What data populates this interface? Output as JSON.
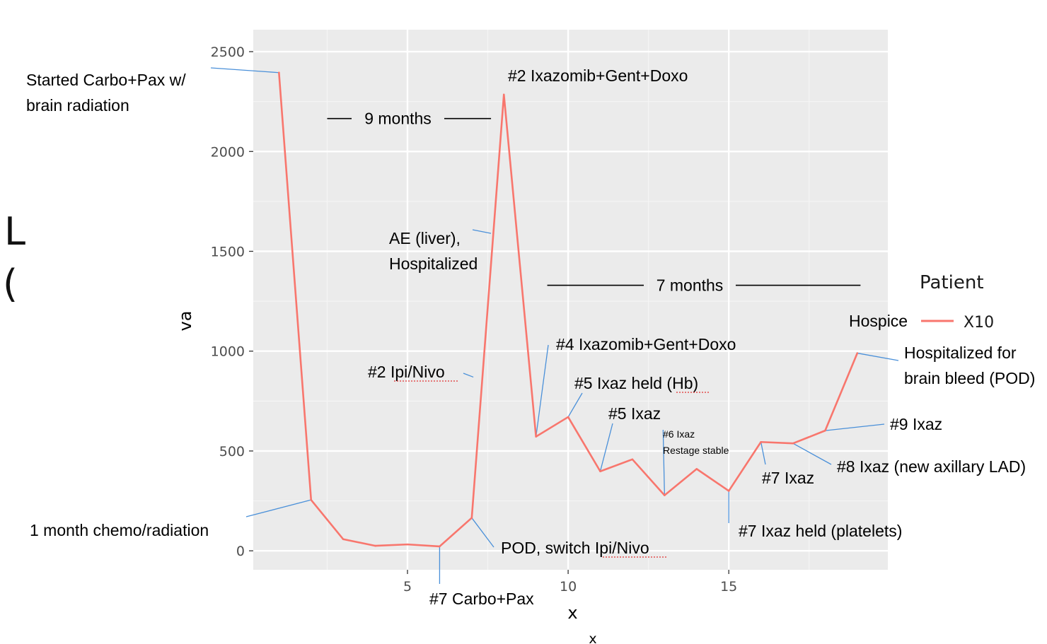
{
  "chart_data": {
    "type": "line",
    "xlabel": "x",
    "ylabel": "va",
    "xlim": [
      0.2,
      19.95
    ],
    "ylim": [
      -95,
      2610
    ],
    "x_ticks": [
      5,
      10,
      15
    ],
    "y_ticks": [
      0,
      500,
      1000,
      1500,
      2000,
      2500
    ],
    "grid": true,
    "panel_background": "#EBEBEB",
    "legend": {
      "title": "Patient",
      "position": "right",
      "entries": [
        "X10"
      ]
    },
    "series": [
      {
        "name": "X10",
        "color": "#F8766D",
        "x": [
          1,
          2,
          3,
          4,
          5,
          6,
          7,
          8,
          9,
          10,
          11,
          12,
          13,
          14,
          15,
          16,
          17,
          18,
          19
        ],
        "y": [
          2395,
          255,
          58,
          25,
          32,
          22,
          165,
          2285,
          572,
          670,
          398,
          458,
          278,
          410,
          300,
          545,
          538,
          602,
          990
        ]
      }
    ],
    "annotations": [
      {
        "id": "started",
        "lines": [
          "Started Carbo+Pax w/",
          "brain radiation"
        ],
        "x": 1,
        "y": 2395
      },
      {
        "id": "one-month",
        "lines": [
          "1 month chemo/radiation"
        ],
        "x": 2,
        "y": 255
      },
      {
        "id": "carbo-pax-7",
        "lines": [
          "#7 Carbo+Pax"
        ],
        "x": 6,
        "y": 22
      },
      {
        "id": "pod-switch",
        "lines": [
          "POD, switch Ipi/Nivo"
        ],
        "x": 7,
        "y": 165
      },
      {
        "id": "ipi-nivo-2",
        "lines": [
          "#2 Ipi/Nivo"
        ],
        "x": 7.05,
        "y": 870
      },
      {
        "id": "ae-liver",
        "lines": [
          "AE (liver),",
          "Hospitalized"
        ],
        "x": 7.6,
        "y": 1590
      },
      {
        "id": "ixazomib-2",
        "lines": [
          "#2 Ixazomib+Gent+Doxo"
        ],
        "x": 8,
        "y": 2285
      },
      {
        "id": "ixazomib-4",
        "lines": [
          "#4 Ixazomib+Gent+Doxo"
        ],
        "x": 9,
        "y": 572
      },
      {
        "id": "ixaz-held-5",
        "lines": [
          "#5 Ixaz held (Hb)"
        ],
        "x": 10,
        "y": 670
      },
      {
        "id": "ixaz-5",
        "lines": [
          "#5 Ixaz"
        ],
        "x": 11,
        "y": 398
      },
      {
        "id": "ixaz-6",
        "lines": [
          "#6 Ixaz",
          "Restage stable"
        ],
        "x": 13,
        "y": 278
      },
      {
        "id": "ixaz-held-7",
        "lines": [
          "#7 Ixaz held (platelets)"
        ],
        "x": 15,
        "y": 300
      },
      {
        "id": "ixaz-7",
        "lines": [
          "#7 Ixaz"
        ],
        "x": 16,
        "y": 545
      },
      {
        "id": "ixaz-8",
        "lines": [
          "#8 Ixaz (new axillary LAD)"
        ],
        "x": 17,
        "y": 538
      },
      {
        "id": "ixaz-9",
        "lines": [
          "#9 Ixaz"
        ],
        "x": 18,
        "y": 602
      },
      {
        "id": "hospice",
        "lines": [
          "Hospice"
        ],
        "x": 18.95,
        "y": 1125
      },
      {
        "id": "brain-bleed",
        "lines": [
          "Hospitalized for",
          "brain bleed (POD)"
        ],
        "x": 19,
        "y": 990
      }
    ],
    "spans": [
      {
        "id": "nine-months",
        "label": "9 months",
        "x_from": 2.5,
        "x_to": 7.6,
        "y": 2165
      },
      {
        "id": "seven-months",
        "label": "7 months",
        "x_from": 9.35,
        "x_to": 19.1,
        "y": 1330
      }
    ]
  },
  "outer_xlabel": "x",
  "background_glyphs": [
    "L",
    "("
  ],
  "colors": {
    "annotation_line": "#4A90D9",
    "span_line": "#000000",
    "series": "#F8766D"
  }
}
